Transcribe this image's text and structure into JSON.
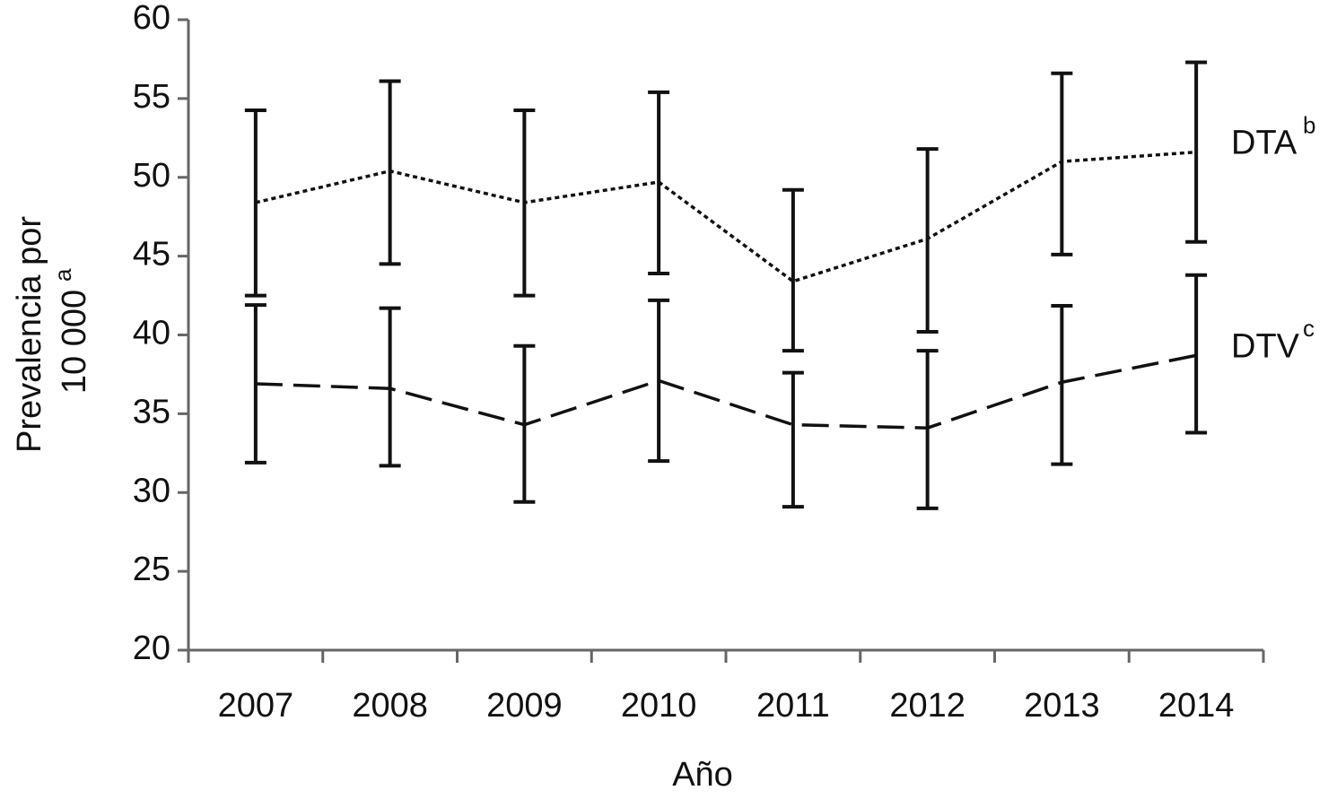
{
  "chart_data": {
    "type": "line",
    "xlabel": "Año",
    "ylabel": [
      "Prevalencia por",
      "10 000"
    ],
    "ylabel_sup": "a",
    "categories": [
      "2007",
      "2008",
      "2009",
      "2010",
      "2011",
      "2012",
      "2013",
      "2014"
    ],
    "ylim": [
      20,
      60
    ],
    "yticks": [
      20,
      25,
      30,
      35,
      40,
      45,
      50,
      55,
      60
    ],
    "series": [
      {
        "name": "DTA",
        "name_sup": "b",
        "color": "#111111",
        "dash": "dotted",
        "values": [
          48.4,
          50.4,
          48.4,
          49.7,
          43.4,
          46.1,
          51.0,
          51.6
        ],
        "lower": [
          42.5,
          44.5,
          42.5,
          43.9,
          39.0,
          40.2,
          45.1,
          45.9
        ],
        "upper": [
          54.25,
          56.1,
          54.25,
          55.4,
          49.2,
          51.8,
          56.6,
          57.3
        ]
      },
      {
        "name": "DTV",
        "name_sup": "c",
        "color": "#111111",
        "dash": "dashed",
        "values": [
          36.9,
          36.6,
          34.3,
          37.1,
          34.3,
          34.1,
          37.0,
          38.7
        ],
        "lower": [
          31.9,
          31.7,
          29.4,
          32.0,
          29.1,
          29.0,
          31.8,
          33.8
        ],
        "upper": [
          41.9,
          41.7,
          39.3,
          42.2,
          37.6,
          39.0,
          41.85,
          43.8
        ]
      }
    ]
  }
}
